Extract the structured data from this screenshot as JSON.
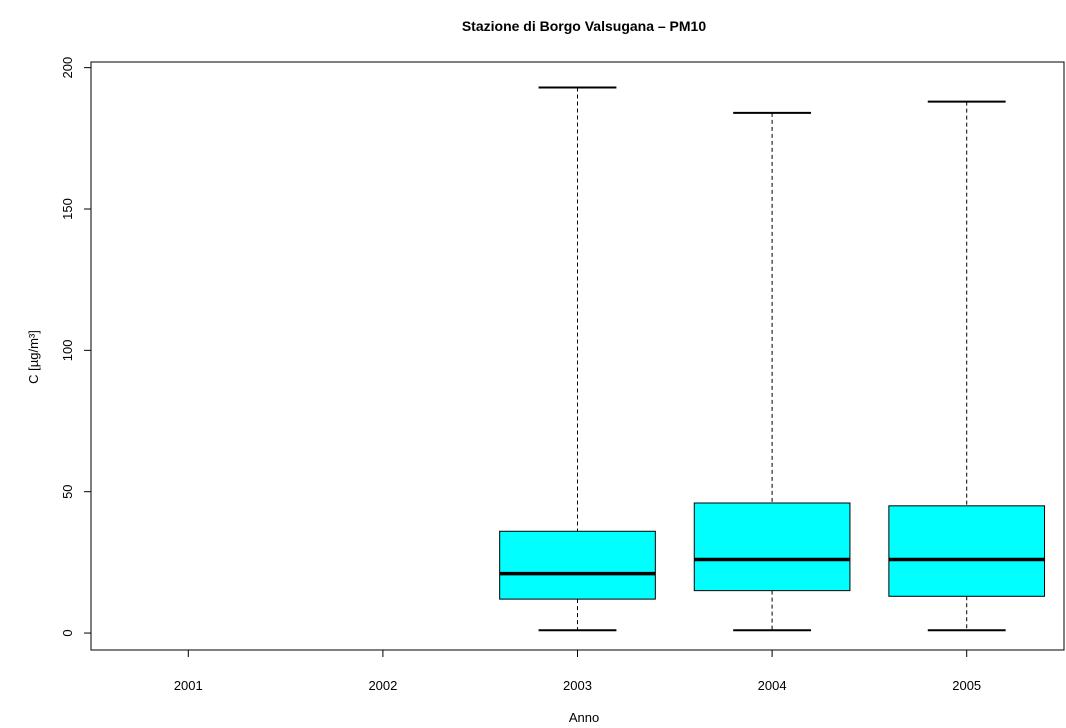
{
  "chart_data": {
    "type": "boxplot",
    "title": "Stazione di Borgo Valsugana – PM10",
    "xlabel": "Anno",
    "ylabel": "C [µg/m³]",
    "ylim": [
      -6,
      202
    ],
    "yticks": [
      0,
      50,
      100,
      150,
      200
    ],
    "categories": [
      "2001",
      "2002",
      "2003",
      "2004",
      "2005"
    ],
    "boxes": [
      null,
      null,
      {
        "min": 1,
        "q1": 12,
        "median": 21,
        "q3": 36,
        "max": 193
      },
      {
        "min": 1,
        "q1": 15,
        "median": 26,
        "q3": 46,
        "max": 184
      },
      {
        "min": 1,
        "q1": 13,
        "median": 26,
        "q3": 45,
        "max": 188
      }
    ],
    "box_fill": "#00FFFF",
    "grid": false,
    "legend": "none"
  }
}
